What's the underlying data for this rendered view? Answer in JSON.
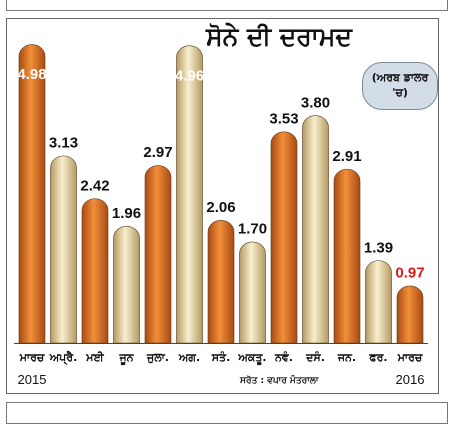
{
  "chart_data": {
    "type": "bar",
    "title": "ਸੋਨੇ ਦੀ ਦਰਾਮਦ",
    "unit_note": "(ਅਰਬ ਡਾਲਰ 'ਚ)",
    "source": "ਸਰੋਤ : ਵਪਾਰ ਮੰਤਰਾਲਾ",
    "categories": [
      "ਮਾਰਚ",
      "ਅਪ੍ਰੈ.",
      "ਮਈ",
      "ਜੂਨ",
      "ਜੁਲਾ.",
      "ਅਗ.",
      "ਸਤੰ.",
      "ਅਕਤੂ.",
      "ਨਵੰ.",
      "ਦਸੰ.",
      "ਜਨ.",
      "ਫਰ.",
      "ਮਾਰਚ"
    ],
    "values": [
      4.98,
      3.13,
      2.42,
      1.96,
      2.97,
      4.96,
      2.06,
      1.7,
      3.53,
      3.8,
      2.91,
      1.39,
      0.97
    ],
    "value_labels": [
      "4.98",
      "3.13",
      "2.42",
      "1.96",
      "2.97",
      "4.96",
      "2.06",
      "1.70",
      "3.53",
      "3.80",
      "2.91",
      "1.39",
      "0.97"
    ],
    "bar_styles": [
      "orange",
      "cream",
      "orange",
      "cream",
      "orange",
      "cream",
      "orange",
      "cream",
      "orange",
      "cream",
      "orange",
      "cream",
      "orange"
    ],
    "year_start": "2015",
    "year_end": "2016",
    "ylim": [
      0,
      5.1
    ],
    "colors": {
      "orange_dark": "#a94a12",
      "orange_light": "#f28f3b",
      "cream_dark": "#b59a62",
      "cream_light": "#f8efcf",
      "highlight_label": "#e01818",
      "label_dark": "#111111",
      "label_light": "#ffffff",
      "badge_bg": "#d3dde8"
    }
  }
}
